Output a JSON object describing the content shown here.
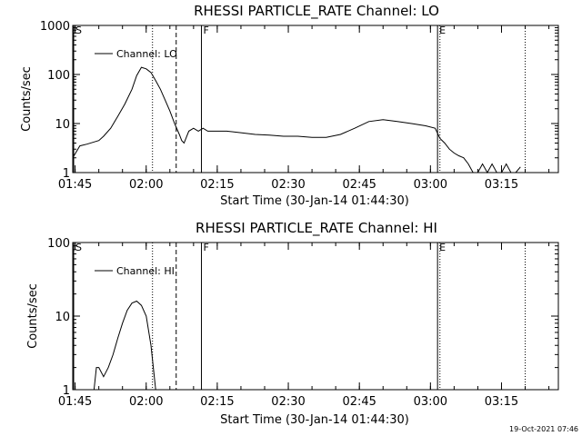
{
  "footer_timestamp": "19-Oct-2021 07:46",
  "chart_data": [
    {
      "type": "line",
      "title": "RHESSI PARTICLE_RATE Channel: LO",
      "xlabel": "Start Time (30-Jan-14 01:44:30)",
      "ylabel": "Counts/sec",
      "xlim": [
        "01:44:30",
        "03:27:00"
      ],
      "ylim": [
        1,
        1000
      ],
      "yscale": "log",
      "xticks": [
        "01:45",
        "02:00",
        "02:15",
        "02:30",
        "02:45",
        "03:00",
        "03:15"
      ],
      "yticks": [
        "1",
        "10",
        "100",
        "1000"
      ],
      "legend": {
        "position": "top-left",
        "entries": [
          "Channel: LO"
        ]
      },
      "markers": [
        {
          "label": "S",
          "time": "01:44:30",
          "style": "solid"
        },
        {
          "label": "",
          "time": "02:01:20",
          "style": "dotted"
        },
        {
          "label": "",
          "time": "02:06:20",
          "style": "dashed"
        },
        {
          "label": "F",
          "time": "02:11:40",
          "style": "solid"
        },
        {
          "label": "E",
          "time": "03:01:30",
          "style": "solid"
        },
        {
          "label": "",
          "time": "03:02:00",
          "style": "dotted"
        },
        {
          "label": "",
          "time": "03:20:00",
          "style": "dotted"
        }
      ],
      "series": [
        {
          "name": "Channel: LO",
          "x": [
            "01:44:30",
            "01:46:00",
            "01:47:30",
            "01:49:00",
            "01:50:00",
            "01:51:00",
            "01:52:30",
            "01:54:00",
            "01:55:30",
            "01:57:00",
            "01:58:00",
            "01:59:00",
            "02:00:00",
            "02:01:00",
            "02:02:00",
            "02:03:00",
            "02:04:00",
            "02:05:00",
            "02:06:00",
            "02:07:00",
            "02:07:30",
            "02:08:00",
            "02:09:00",
            "02:10:00",
            "02:11:00",
            "02:12:00",
            "02:13:00",
            "02:15:00",
            "02:17:00",
            "02:20:00",
            "02:23:00",
            "02:26:00",
            "02:29:00",
            "02:32:00",
            "02:35:00",
            "02:38:00",
            "02:41:00",
            "02:44:00",
            "02:47:00",
            "02:50:00",
            "02:53:00",
            "02:56:00",
            "02:59:00",
            "03:01:00",
            "03:02:00",
            "03:03:00",
            "03:04:00",
            "03:05:00",
            "03:06:00",
            "03:07:00",
            "03:08:00",
            "03:09:00",
            "03:10:00",
            "03:11:00",
            "03:12:00",
            "03:13:00",
            "03:14:00",
            "03:15:00",
            "03:16:00",
            "03:17:00",
            "03:18:00",
            "03:19:00"
          ],
          "values": [
            2.0,
            3.5,
            3.8,
            4.2,
            4.5,
            5.5,
            8,
            14,
            25,
            50,
            95,
            140,
            130,
            110,
            75,
            50,
            30,
            18,
            10,
            6,
            4.5,
            4.0,
            7,
            8,
            7,
            8,
            7,
            7,
            7,
            6.5,
            6,
            5.8,
            5.5,
            5.5,
            5.2,
            5.2,
            6,
            8,
            11,
            12,
            11,
            10,
            9,
            8,
            5,
            4,
            3,
            2.5,
            2.2,
            2,
            1.5,
            1,
            1,
            1.5,
            1,
            1.5,
            1,
            1,
            1.5,
            1,
            1,
            1.3
          ]
        }
      ]
    },
    {
      "type": "line",
      "title": "RHESSI PARTICLE_RATE Channel: HI",
      "xlabel": "Start Time (30-Jan-14 01:44:30)",
      "ylabel": "Counts/sec",
      "xlim": [
        "01:44:30",
        "03:27:00"
      ],
      "ylim": [
        1,
        100
      ],
      "yscale": "log",
      "xticks": [
        "01:45",
        "02:00",
        "02:15",
        "02:30",
        "02:45",
        "03:00",
        "03:15"
      ],
      "yticks": [
        "1",
        "10",
        "100"
      ],
      "legend": {
        "position": "top-left",
        "entries": [
          "Channel: HI"
        ]
      },
      "markers": [
        {
          "label": "S",
          "time": "01:44:30",
          "style": "solid"
        },
        {
          "label": "",
          "time": "02:01:20",
          "style": "dotted"
        },
        {
          "label": "",
          "time": "02:06:20",
          "style": "dashed"
        },
        {
          "label": "F",
          "time": "02:11:40",
          "style": "solid"
        },
        {
          "label": "E",
          "time": "03:01:30",
          "style": "solid"
        },
        {
          "label": "",
          "time": "03:02:00",
          "style": "dotted"
        },
        {
          "label": "",
          "time": "03:20:00",
          "style": "dotted"
        }
      ],
      "series": [
        {
          "name": "Channel: HI",
          "x": [
            "01:49:00",
            "01:49:30",
            "01:50:00",
            "01:51:00",
            "01:52:00",
            "01:53:00",
            "01:54:00",
            "01:55:00",
            "01:56:00",
            "01:57:00",
            "01:58:00",
            "01:59:00",
            "02:00:00",
            "02:01:00",
            "02:01:30",
            "02:02:00"
          ],
          "values": [
            1,
            2,
            2,
            1.5,
            2,
            3,
            5,
            8,
            12,
            15,
            16,
            14,
            10,
            4,
            2,
            1
          ]
        }
      ]
    }
  ]
}
